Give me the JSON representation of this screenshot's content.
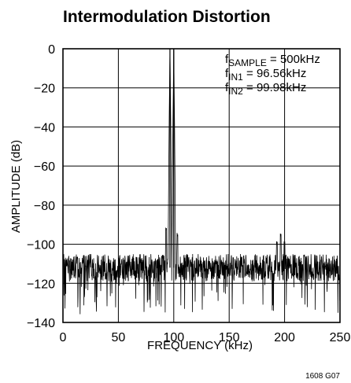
{
  "chart_data": {
    "type": "line",
    "title": "Intermodulation Distortion",
    "xlabel": "FREQUENCY (kHz)",
    "ylabel": "AMPLITUDE (dB)",
    "xlim": [
      0,
      250
    ],
    "ylim": [
      -140,
      0
    ],
    "x_ticks": [
      "0",
      "50",
      "100",
      "150",
      "200",
      "250"
    ],
    "y_ticks": [
      "0",
      "−20",
      "−40",
      "−60",
      "−80",
      "−100",
      "−120",
      "−140"
    ],
    "grid": "horizontal",
    "annotations": [
      {
        "prefix": "f",
        "sub": "SAMPLE",
        "text": " = 500kHz"
      },
      {
        "prefix": "f",
        "sub": "IN1",
        "text": " = 96.56kHz"
      },
      {
        "prefix": "f",
        "sub": "IN2",
        "text": " = 99.98kHz"
      }
    ],
    "figure_id": "1608 G07",
    "series": [
      {
        "noise_floor_db": -112,
        "noise_min_db": -136,
        "tones": [
          {
            "x": 96.56,
            "y": 0
          },
          {
            "x": 99.98,
            "y": 0
          }
        ],
        "spurs": [
          {
            "x": 93.1,
            "y": -93
          },
          {
            "x": 103.4,
            "y": -96
          },
          {
            "x": 193.1,
            "y": -100
          },
          {
            "x": 196.5,
            "y": -96
          },
          {
            "x": 199.9,
            "y": -100
          }
        ]
      }
    ]
  }
}
